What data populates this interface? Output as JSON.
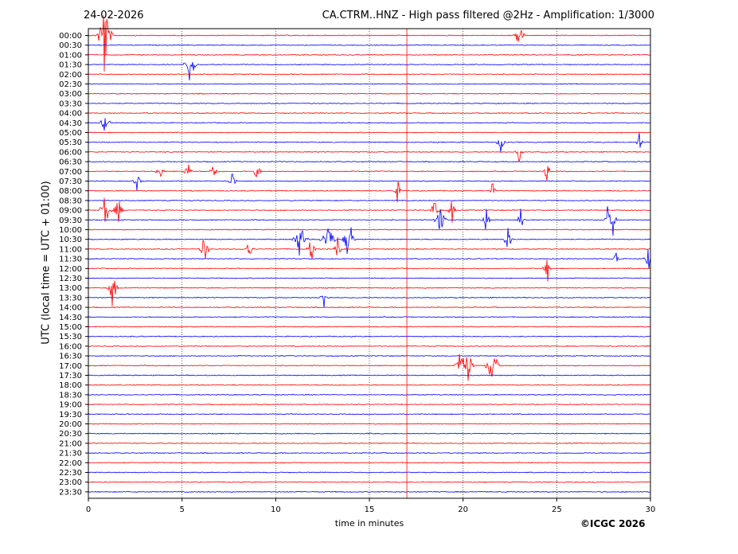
{
  "header": {
    "date": "24-02-2026",
    "title": "CA.CTRM..HNZ - High pass filtered @2Hz - Amplification: 1/3000"
  },
  "footer": {
    "copyright": "©ICGC 2026"
  },
  "chart_data": {
    "type": "line",
    "title": "CA.CTRM..HNZ - High pass filtered @2Hz - Amplification: 1/3000",
    "xlabel": "time in minutes",
    "ylabel": "UTC (local time = UTC + 01:00)",
    "xlim": [
      0,
      30
    ],
    "x_ticks": [
      "0",
      "5",
      "10",
      "15",
      "20",
      "25",
      "30"
    ],
    "y_ticks": [
      "00:00",
      "00:30",
      "01:00",
      "01:30",
      "02:00",
      "02:30",
      "03:00",
      "03:30",
      "04:00",
      "04:30",
      "05:00",
      "05:30",
      "06:00",
      "06:30",
      "07:00",
      "07:30",
      "08:00",
      "08:30",
      "09:00",
      "09:30",
      "10:00",
      "10:30",
      "11:00",
      "11:30",
      "12:00",
      "12:30",
      "13:00",
      "13:30",
      "14:00",
      "14:30",
      "15:00",
      "15:30",
      "16:00",
      "16:30",
      "17:00",
      "17:30",
      "18:00",
      "18:30",
      "19:00",
      "19:30",
      "20:00",
      "20:30",
      "21:00",
      "21:30",
      "22:00",
      "22:30",
      "23:00",
      "23:30"
    ],
    "grid": {
      "vertical_dotted": true
    },
    "colors": {
      "even_rows": "#ff0000",
      "odd_rows": "#0000ff",
      "axis": "#000000"
    },
    "events": [
      {
        "row": 0,
        "minute": 0.85,
        "amp": 9,
        "width": 0.15
      },
      {
        "row": 0,
        "minute": 23.0,
        "amp": 4,
        "width": 0.1
      },
      {
        "row": 3,
        "minute": 5.45,
        "amp": 5,
        "width": 0.12
      },
      {
        "row": 9,
        "minute": 0.9,
        "amp": 3,
        "width": 0.1
      },
      {
        "row": 11,
        "minute": 22.0,
        "amp": 2.5,
        "width": 0.08
      },
      {
        "row": 11,
        "minute": 29.4,
        "amp": 2.5,
        "width": 0.08
      },
      {
        "row": 12,
        "minute": 23.0,
        "amp": 2,
        "width": 0.08
      },
      {
        "row": 14,
        "minute": 3.8,
        "amp": 2.5,
        "width": 0.08
      },
      {
        "row": 14,
        "minute": 5.3,
        "amp": 2.5,
        "width": 0.08
      },
      {
        "row": 14,
        "minute": 6.7,
        "amp": 3,
        "width": 0.08
      },
      {
        "row": 14,
        "minute": 9.0,
        "amp": 2.5,
        "width": 0.08
      },
      {
        "row": 14,
        "minute": 24.5,
        "amp": 3,
        "width": 0.08
      },
      {
        "row": 15,
        "minute": 2.6,
        "amp": 2,
        "width": 0.08
      },
      {
        "row": 15,
        "minute": 7.7,
        "amp": 2.5,
        "width": 0.08
      },
      {
        "row": 16,
        "minute": 16.5,
        "amp": 2.5,
        "width": 0.08
      },
      {
        "row": 16,
        "minute": 21.6,
        "amp": 2.5,
        "width": 0.08
      },
      {
        "row": 18,
        "minute": 0.9,
        "amp": 4,
        "width": 0.12
      },
      {
        "row": 18,
        "minute": 1.6,
        "amp": 3,
        "width": 0.1
      },
      {
        "row": 18,
        "minute": 18.5,
        "amp": 3,
        "width": 0.1
      },
      {
        "row": 18,
        "minute": 19.4,
        "amp": 3,
        "width": 0.08
      },
      {
        "row": 19,
        "minute": 18.8,
        "amp": 3.5,
        "width": 0.12
      },
      {
        "row": 19,
        "minute": 21.2,
        "amp": 4,
        "width": 0.08
      },
      {
        "row": 19,
        "minute": 23.1,
        "amp": 3,
        "width": 0.08
      },
      {
        "row": 19,
        "minute": 27.7,
        "amp": 3,
        "width": 0.08
      },
      {
        "row": 19,
        "minute": 28.0,
        "amp": 3,
        "width": 0.08
      },
      {
        "row": 21,
        "minute": 11.3,
        "amp": 4,
        "width": 0.15
      },
      {
        "row": 21,
        "minute": 12.8,
        "amp": 4,
        "width": 0.15
      },
      {
        "row": 21,
        "minute": 13.8,
        "amp": 3,
        "width": 0.1
      },
      {
        "row": 21,
        "minute": 14.0,
        "amp": 3,
        "width": 0.08
      },
      {
        "row": 21,
        "minute": 22.4,
        "amp": 3,
        "width": 0.1
      },
      {
        "row": 22,
        "minute": 6.2,
        "amp": 3.5,
        "width": 0.1
      },
      {
        "row": 22,
        "minute": 8.6,
        "amp": 3,
        "width": 0.08
      },
      {
        "row": 22,
        "minute": 11.9,
        "amp": 3,
        "width": 0.1
      },
      {
        "row": 22,
        "minute": 13.3,
        "amp": 3,
        "width": 0.08
      },
      {
        "row": 23,
        "minute": 28.2,
        "amp": 2.5,
        "width": 0.08
      },
      {
        "row": 23,
        "minute": 29.9,
        "amp": 2.5,
        "width": 0.08
      },
      {
        "row": 24,
        "minute": 24.5,
        "amp": 3,
        "width": 0.08
      },
      {
        "row": 26,
        "minute": 1.3,
        "amp": 5,
        "width": 0.1
      },
      {
        "row": 27,
        "minute": 12.6,
        "amp": 3,
        "width": 0.08
      },
      {
        "row": 34,
        "minute": 19.9,
        "amp": 5,
        "width": 0.12
      },
      {
        "row": 34,
        "minute": 20.3,
        "amp": 4,
        "width": 0.1
      },
      {
        "row": 34,
        "minute": 21.5,
        "amp": 4,
        "width": 0.12
      },
      {
        "row": 34,
        "minute": 21.7,
        "amp": 3,
        "width": 0.08
      }
    ]
  }
}
